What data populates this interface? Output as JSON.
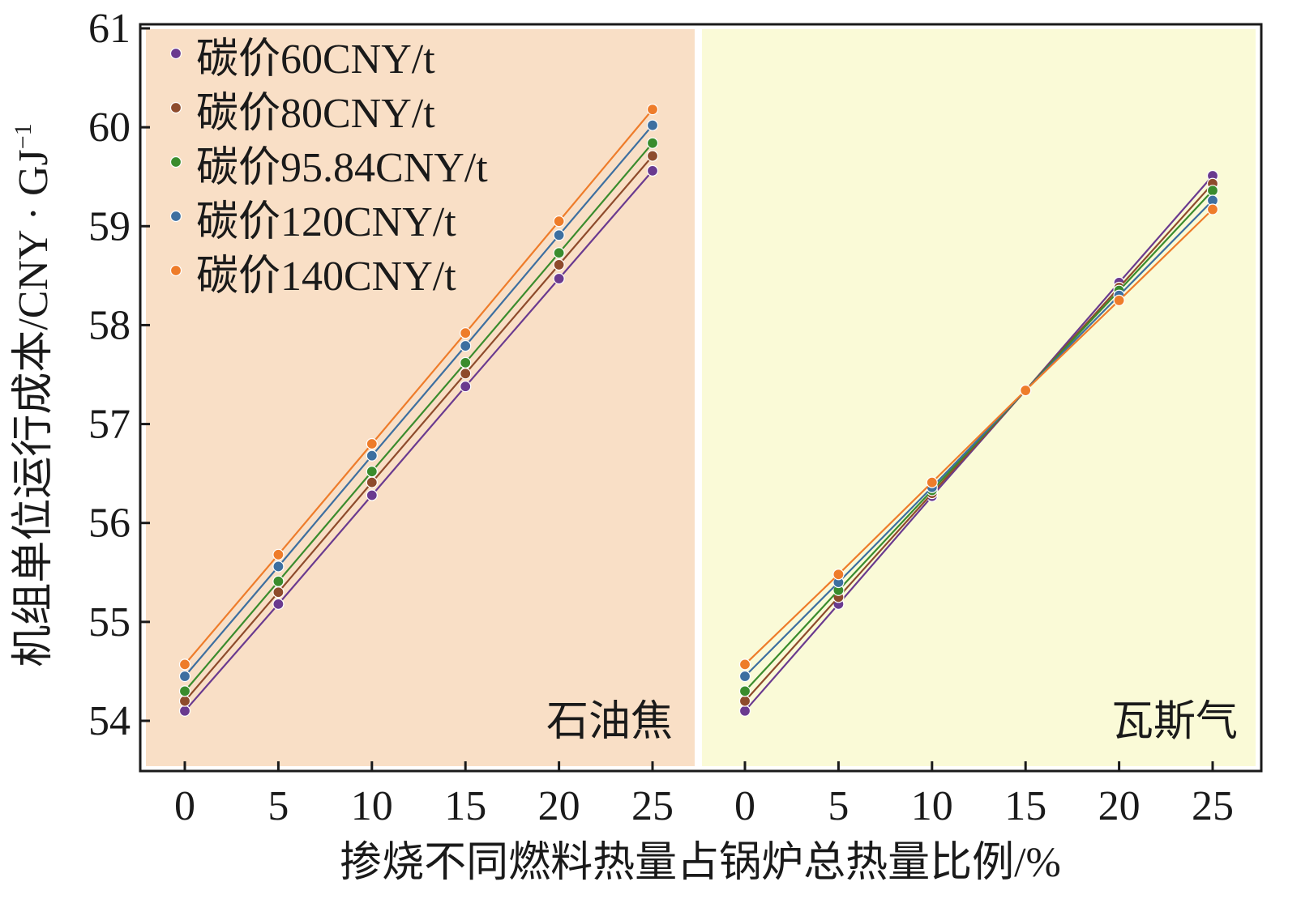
{
  "chart_data": {
    "type": "line",
    "ylabel": "机组单位运行成本/CNY · GJ",
    "ylabel_superscript": "−1",
    "xlabel": "掺烧不同燃料热量占锅炉总热量比例/%",
    "ylim": [
      54,
      61
    ],
    "y_ticks": [
      "54",
      "55",
      "56",
      "57",
      "58",
      "59",
      "60",
      "61"
    ],
    "grid": false,
    "legend_position": "top-left",
    "panels": [
      {
        "label": "石油焦",
        "background": "#f9dfc6",
        "x": [
          0,
          5,
          10,
          15,
          20,
          25
        ],
        "x_tick_labels": [
          "0",
          "5",
          "10",
          "15",
          "20",
          "25"
        ],
        "series": [
          {
            "name": "碳价60CNY/t",
            "values": [
              54.1,
              55.18,
              56.28,
              57.38,
              58.47,
              59.56
            ]
          },
          {
            "name": "碳价80CNY/t",
            "values": [
              54.2,
              55.3,
              56.41,
              57.51,
              58.61,
              59.71
            ]
          },
          {
            "name": "碳价95.84CNY/t",
            "values": [
              54.3,
              55.41,
              56.52,
              57.62,
              58.73,
              59.84
            ]
          },
          {
            "name": "碳价120CNY/t",
            "values": [
              54.45,
              55.56,
              56.68,
              57.79,
              58.91,
              60.02
            ]
          },
          {
            "name": "碳价140CNY/t",
            "values": [
              54.57,
              55.68,
              56.8,
              57.92,
              59.05,
              60.18
            ]
          }
        ]
      },
      {
        "label": "瓦斯气",
        "background": "#fafad7",
        "x": [
          0,
          5,
          10,
          15,
          20,
          25
        ],
        "x_tick_labels": [
          "0",
          "5",
          "10",
          "15",
          "20",
          "25"
        ],
        "series": [
          {
            "name": "碳价60CNY/t",
            "values": [
              54.1,
              55.18,
              56.27,
              57.34,
              58.43,
              59.51
            ]
          },
          {
            "name": "碳价80CNY/t",
            "values": [
              54.2,
              55.25,
              56.3,
              57.34,
              58.38,
              59.43
            ]
          },
          {
            "name": "碳价95.84CNY/t",
            "values": [
              54.3,
              55.32,
              56.33,
              57.34,
              58.35,
              59.36
            ]
          },
          {
            "name": "碳价120CNY/t",
            "values": [
              54.45,
              55.4,
              56.36,
              57.34,
              58.3,
              59.26
            ]
          },
          {
            "name": "碳价140CNY/t",
            "values": [
              54.57,
              55.48,
              56.41,
              57.34,
              58.25,
              59.17
            ]
          }
        ]
      }
    ],
    "series_colors": [
      "#6a3a8f",
      "#8e4b2c",
      "#3a8c2d",
      "#3d6fa0",
      "#ee7c2a"
    ]
  }
}
